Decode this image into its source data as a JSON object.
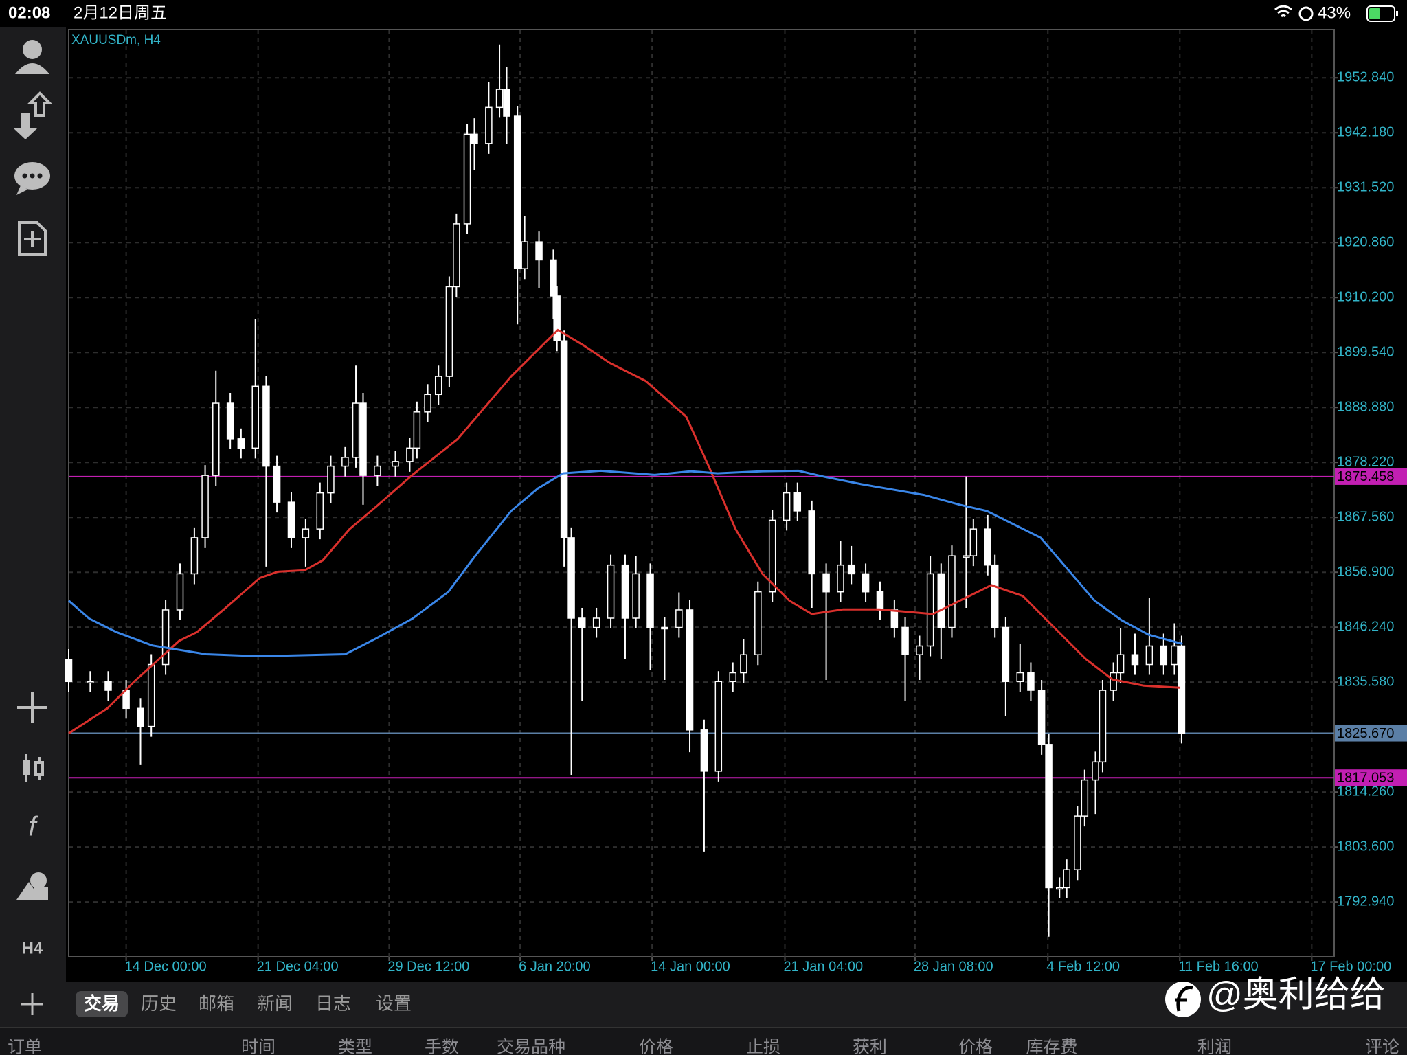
{
  "status_bar": {
    "time": "02:08",
    "date": "2月12日周五",
    "battery": "43%"
  },
  "chart_data": {
    "type": "candlestick",
    "title": "XAUUSDm, H4",
    "x": [
      0,
      6,
      11,
      16,
      20,
      23,
      27,
      31,
      35,
      38,
      41,
      45,
      48,
      52,
      55,
      58,
      62,
      66,
      70,
      73,
      77,
      80,
      82,
      86,
      91,
      95,
      97,
      100,
      103,
      106,
      108,
      111,
      113,
      117,
      120,
      122,
      125,
      127,
      131,
      135,
      136,
      138,
      140,
      143,
      147,
      151,
      155,
      158,
      162,
      166,
      170,
      173,
      177,
      181,
      185,
      188,
      192,
      196,
      200,
      203,
      207,
      211,
      215,
      218,
      222,
      226,
      230,
      233,
      237,
      240,
      243,
      246,
      250,
      252,
      256,
      258,
      261,
      265,
      268,
      271,
      273,
      276,
      278,
      281,
      283,
      286,
      288,
      291,
      293,
      297,
      301,
      305,
      308,
      310
    ],
    "open": [
      1840,
      1835.7,
      1835.7,
      1834,
      1830.5,
      1827,
      1839,
      1849.6,
      1856.6,
      1863.6,
      1875.7,
      1889.7,
      1882.8,
      1881,
      1893,
      1877.5,
      1870.5,
      1863.6,
      1865.3,
      1872.3,
      1877.5,
      1879.2,
      1889.7,
      1875.7,
      1877.5,
      1878.4,
      1881,
      1888,
      1891.4,
      1894.9,
      1912.3,
      1924.5,
      1941.9,
      1940.1,
      1947.1,
      1950.6,
      1945.4,
      1915.8,
      1921,
      1917.5,
      1910.5,
      1901.8,
      1863.6,
      1848,
      1846.2,
      1848,
      1858.3,
      1848,
      1856.6,
      1846.2,
      1846.2,
      1849.6,
      1826.3,
      1818.3,
      1835.7,
      1837.4,
      1840.9,
      1853.1,
      1867,
      1872.3,
      1868.8,
      1856.6,
      1853.1,
      1858.3,
      1856.6,
      1853.1,
      1849.6,
      1846.2,
      1840.9,
      1842.6,
      1856.6,
      1846.2,
      1860.1,
      1860.1,
      1865.3,
      1858.3,
      1846.2,
      1835.7,
      1837.4,
      1834,
      1823.5,
      1795.7,
      1795.7,
      1799.2,
      1809.6,
      1816.6,
      1820.1,
      1834,
      1837.4,
      1840.9,
      1839,
      1842.6,
      1839,
      1842.6
    ],
    "high": [
      1842,
      1837.7,
      1837.7,
      1836,
      1832.5,
      1841,
      1851.6,
      1858.6,
      1865.6,
      1877.7,
      1896,
      1891.7,
      1884.8,
      1906,
      1895,
      1879.5,
      1872.5,
      1867.3,
      1874.3,
      1879.5,
      1881.2,
      1897,
      1891.7,
      1879.5,
      1880.4,
      1883,
      1890,
      1893.4,
      1897,
      1914.3,
      1926.5,
      1943.9,
      1945,
      1952,
      1959.3,
      1955,
      1947.4,
      1926,
      1923,
      1919.5,
      1912.5,
      1903.8,
      1865.6,
      1850,
      1850,
      1860.3,
      1860.3,
      1860,
      1858.6,
      1848.2,
      1853,
      1851.6,
      1828.3,
      1837.7,
      1839.4,
      1844,
      1855.1,
      1869,
      1874.3,
      1874.3,
      1870.8,
      1858.6,
      1863,
      1862,
      1858.6,
      1855.1,
      1851.6,
      1848.2,
      1844.6,
      1860,
      1858.6,
      1862.1,
      1875.5,
      1867.3,
      1868,
      1860.3,
      1848.2,
      1843,
      1839.4,
      1836,
      1825.5,
      1797.7,
      1801.2,
      1811.6,
      1818.6,
      1822.1,
      1836,
      1839.4,
      1846,
      1845,
      1852,
      1845,
      1847,
      1844.6
    ],
    "low": [
      1833.7,
      1833.7,
      1832,
      1828.5,
      1819.5,
      1825,
      1837,
      1847.6,
      1854.6,
      1861.6,
      1873.7,
      1880.8,
      1879,
      1879,
      1858,
      1868.5,
      1861.6,
      1858,
      1863.3,
      1870.3,
      1875.5,
      1877.2,
      1870,
      1873.7,
      1875.5,
      1876.4,
      1879,
      1886,
      1889.4,
      1892.9,
      1910.3,
      1922.5,
      1935,
      1938.1,
      1945.1,
      1940,
      1905,
      1913.8,
      1912,
      1906,
      1899.8,
      1858,
      1817.5,
      1832,
      1844.2,
      1846,
      1840,
      1846,
      1838,
      1836,
      1844.2,
      1822,
      1802.7,
      1816.3,
      1833.7,
      1835.4,
      1838.9,
      1851.1,
      1865,
      1866.8,
      1850,
      1836,
      1851.1,
      1854.6,
      1851.1,
      1847.6,
      1844.2,
      1832,
      1836,
      1840.6,
      1840,
      1844.2,
      1850,
      1858.1,
      1856.3,
      1844.2,
      1829,
      1833.7,
      1832,
      1821.5,
      1786.2,
      1793.7,
      1793.7,
      1797.2,
      1807.6,
      1810,
      1818.1,
      1832,
      1835.4,
      1837,
      1837,
      1837,
      1837,
      1823.7
    ],
    "close": [
      1835.7,
      1835.7,
      1834,
      1830.5,
      1827,
      1839,
      1849.6,
      1856.6,
      1863.6,
      1875.7,
      1889.7,
      1882.8,
      1881,
      1893,
      1877.5,
      1870.5,
      1863.6,
      1865.3,
      1872.3,
      1877.5,
      1879.2,
      1889.7,
      1875.7,
      1877.5,
      1878.4,
      1881,
      1888,
      1891.4,
      1894.9,
      1912.3,
      1924.5,
      1941.9,
      1940.1,
      1947.1,
      1950.6,
      1945.4,
      1915.8,
      1921,
      1917.5,
      1910.5,
      1901.8,
      1863.6,
      1848,
      1846.2,
      1848,
      1858.3,
      1848,
      1856.6,
      1846.2,
      1846.2,
      1849.6,
      1826.3,
      1818.3,
      1835.7,
      1837.4,
      1840.9,
      1853.1,
      1867,
      1872.3,
      1868.8,
      1856.6,
      1853.1,
      1858.3,
      1856.6,
      1853.1,
      1849.6,
      1846.2,
      1840.9,
      1842.6,
      1856.6,
      1846.2,
      1860.1,
      1860.1,
      1865.3,
      1858.3,
      1846.2,
      1835.7,
      1837.4,
      1834,
      1823.5,
      1795.7,
      1795.7,
      1799.2,
      1809.6,
      1816.6,
      1820.1,
      1834,
      1837.4,
      1840.9,
      1839,
      1842.6,
      1839,
      1842.6,
      1825.67
    ],
    "up_color": "#000000",
    "down_color": "#ffffff",
    "candle_stroke": "#ffffff",
    "series": [
      {
        "color": "#d9302c",
        "x": [
          0,
          10.75,
          18.25,
          30.75,
          35.75,
          43.25,
          53.25,
          58.25,
          65.75,
          70.75,
          78.25,
          85.75,
          95.75,
          108.25,
          115.75,
          123.25,
          130.75,
          136.25,
          143.25,
          150.75,
          160.75,
          172,
          178.25,
          185.75,
          193.25,
          200.75,
          207,
          215.75,
          225.75,
          240.75,
          248.25,
          257,
          265.75,
          274.5,
          283.25,
          290.75,
          299.5,
          309.5
        ],
        "values": [
          1825.65,
          1830.5,
          1835.7,
          1843.6,
          1845.3,
          1849.7,
          1855.8,
          1857,
          1857.3,
          1859.2,
          1865.3,
          1869.7,
          1875.8,
          1882.7,
          1888.8,
          1894.9,
          1900.1,
          1903.9,
          1901,
          1897.5,
          1894,
          1887.1,
          1877.5,
          1865.3,
          1856.6,
          1851.4,
          1848.8,
          1849.7,
          1849.7,
          1848.8,
          1851.4,
          1854.4,
          1852.3,
          1846.2,
          1840.1,
          1836.1,
          1834.9,
          1834.5
        ]
      },
      {
        "color": "#3a86e8",
        "x": [
          0,
          5.75,
          13.25,
          23.25,
          38.25,
          53.25,
          77,
          85.75,
          95.75,
          105.75,
          113.25,
          123.25,
          130.75,
          137.75,
          148.25,
          163.25,
          173.25,
          180.75,
          193.25,
          203.25,
          210.75,
          220.75,
          238.25,
          248.25,
          255.75,
          263.25,
          270.75,
          278.25,
          285.75,
          293.25,
          300.75,
          310.25
        ],
        "values": [
          1851.4,
          1847.9,
          1845.3,
          1842.7,
          1841,
          1840.6,
          1841,
          1844.1,
          1847.9,
          1853.1,
          1860.1,
          1868.8,
          1873.2,
          1876.1,
          1876.6,
          1875.8,
          1876.5,
          1876.1,
          1876.5,
          1876.6,
          1875.4,
          1874,
          1871.9,
          1870,
          1868.8,
          1866.2,
          1863.6,
          1857.5,
          1851.4,
          1847.6,
          1844.8,
          1843
        ]
      }
    ],
    "levels": [
      {
        "value": 1875.458,
        "color": "#c21fb2"
      },
      {
        "value": 1817.053,
        "color": "#c21fb2"
      },
      {
        "value": 1825.67,
        "label": "1825.670",
        "color": "#5b7fa6"
      }
    ],
    "xlim": [
      0,
      352.5
    ],
    "ylim": [
      1782.3,
      1962.2
    ],
    "xticks": [
      {
        "value": 16,
        "label": "14 Dec 00:00"
      },
      {
        "value": 52.75,
        "label": "21 Dec 04:00"
      },
      {
        "value": 89.25,
        "label": "29 Dec 12:00"
      },
      {
        "value": 125.75,
        "label": "6 Jan 20:00"
      },
      {
        "value": 162.5,
        "label": "14 Jan 00:00"
      },
      {
        "value": 199.5,
        "label": "21 Jan 04:00"
      },
      {
        "value": 235.75,
        "label": "28 Jan 08:00"
      },
      {
        "value": 272.75,
        "label": "4 Feb 12:00"
      },
      {
        "value": 309.5,
        "label": "11 Feb 16:00"
      },
      {
        "value": 346.25,
        "label": "17 Feb 00:00"
      }
    ],
    "yticks": [
      {
        "value": 1952.84,
        "label": "1952.840"
      },
      {
        "value": 1942.18,
        "label": "1942.180"
      },
      {
        "value": 1931.52,
        "label": "1931.520"
      },
      {
        "value": 1920.86,
        "label": "1920.860"
      },
      {
        "value": 1910.2,
        "label": "1910.200"
      },
      {
        "value": 1899.54,
        "label": "1899.540"
      },
      {
        "value": 1888.88,
        "label": "1888.880"
      },
      {
        "value": 1878.22,
        "label": "1878.220"
      },
      {
        "value": 1867.56,
        "label": "1867.560"
      },
      {
        "value": 1856.9,
        "label": "1856.900"
      },
      {
        "value": 1846.24,
        "label": "1846.240"
      },
      {
        "value": 1835.58,
        "label": "1835.580"
      },
      {
        "value": 1814.26,
        "label": "1814.260"
      },
      {
        "value": 1803.6,
        "label": "1803.600"
      },
      {
        "value": 1792.94,
        "label": "1792.940"
      }
    ],
    "grid": true
  },
  "toolbar": {
    "timeframe": "H4"
  },
  "tabs": [
    "交易",
    "历史",
    "邮箱",
    "新闻",
    "日志",
    "设置"
  ],
  "columns": [
    "订单",
    "时间",
    "类型",
    "手数",
    "交易品种",
    "价格",
    "止损",
    "获利",
    "价格",
    "库存费",
    "利润",
    "评论"
  ],
  "watermark": "@奥利给给"
}
